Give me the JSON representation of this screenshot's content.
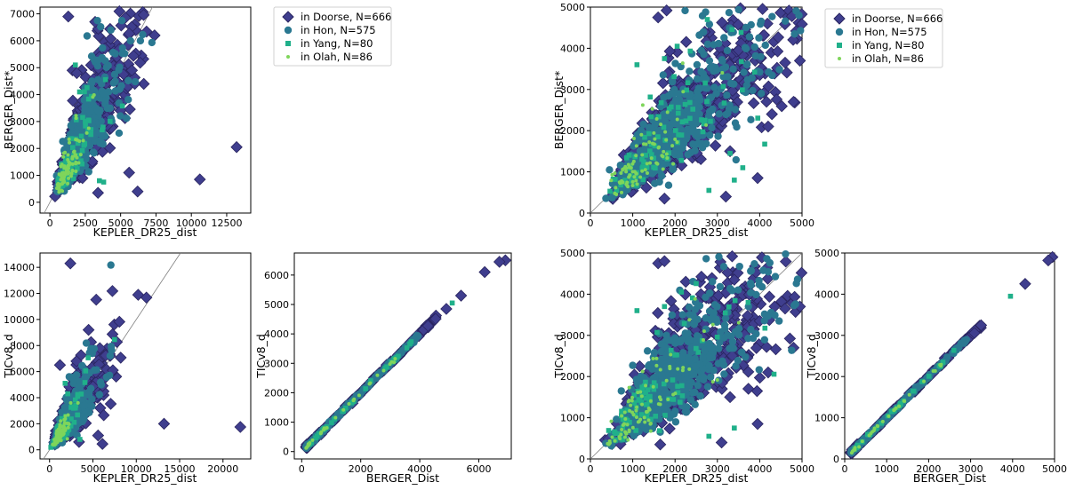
{
  "figure": {
    "colors": {
      "doorse": "#3f3e8e",
      "doorse_edge": "#2a2560",
      "hon": "#2a7891",
      "hon_edge": "#1f5e72",
      "yang": "#20b08a",
      "olah": "#7fd55b",
      "identity": "#808080"
    }
  },
  "legends": [
    {
      "items": [
        {
          "label": "in Doorse, N=666",
          "marker": "diamond-icon",
          "color": "#3f3e8e"
        },
        {
          "label": "in Hon, N=575",
          "marker": "circle-icon",
          "color": "#2a7891"
        },
        {
          "label": "in Yang, N=80",
          "marker": "square-icon",
          "color": "#20b08a"
        },
        {
          "label": "in Olah, N=86",
          "marker": "dot-icon",
          "color": "#7fd55b"
        }
      ]
    },
    {
      "items": [
        {
          "label": "in Doorse, N=666",
          "marker": "diamond-icon",
          "color": "#3f3e8e"
        },
        {
          "label": "in Hon, N=575",
          "marker": "circle-icon",
          "color": "#2a7891"
        },
        {
          "label": "in Yang, N=80",
          "marker": "square-icon",
          "color": "#20b08a"
        },
        {
          "label": "in Olah, N=86",
          "marker": "dot-icon",
          "color": "#7fd55b"
        }
      ]
    }
  ],
  "chart_data": [
    {
      "type": "scatter",
      "xlabel": "KEPLER_DR25_dist",
      "ylabel": "BERGER_Dist*",
      "xlim": [
        -700,
        14200
      ],
      "ylim": [
        -400,
        7250
      ],
      "xticks": [
        0,
        2500,
        5000,
        7500,
        10000,
        12500
      ],
      "yticks": [
        0,
        1000,
        2000,
        3000,
        4000,
        5000,
        6000,
        7000
      ],
      "identity_line": true,
      "clamp_max": 14000,
      "series": [
        {
          "name": "in Doorse, N=666",
          "marker": "diamond",
          "color": "#3f3e8e",
          "outliers": [
            [
              1300,
              6900
            ],
            [
              3200,
              6700
            ],
            [
              7400,
              6200
            ],
            [
              1600,
              4900
            ],
            [
              1900,
              4800
            ],
            [
              5800,
              4900
            ],
            [
              3500,
              5400
            ],
            [
              5500,
              4300
            ],
            [
              6000,
              4400
            ],
            [
              13200,
              2050
            ],
            [
              10600,
              850
            ],
            [
              5600,
              1100
            ],
            [
              6200,
              400
            ],
            [
              3400,
              350
            ],
            [
              2300,
              900
            ]
          ]
        },
        {
          "name": "in Hon, N=575",
          "marker": "circle",
          "color": "#2a7891",
          "outliers": []
        },
        {
          "name": "in Yang, N=80",
          "marker": "square",
          "color": "#20b08a",
          "outliers": [
            [
              1800,
              5100
            ],
            [
              2100,
              4100
            ],
            [
              2500,
              3000
            ],
            [
              3500,
              800
            ],
            [
              3800,
              750
            ],
            [
              2900,
              2700
            ]
          ]
        },
        {
          "name": "in Olah, N=86",
          "marker": "dot",
          "color": "#7fd55b",
          "outliers": []
        }
      ]
    },
    {
      "type": "scatter",
      "xlabel": "KEPLER_DR25_dist",
      "ylabel": "BERGER_Dist*",
      "xlim": [
        0,
        5000
      ],
      "ylim": [
        0,
        5000
      ],
      "xticks": [
        0,
        1000,
        2000,
        3000,
        4000,
        5000
      ],
      "yticks": [
        0,
        1000,
        2000,
        3000,
        4000,
        5000
      ],
      "identity_line": true,
      "clamp_max": 5000,
      "series": [
        {
          "name": "in Doorse, N=666",
          "marker": "diamond",
          "color": "#3f3e8e",
          "outliers": [
            [
              1600,
              4750
            ],
            [
              1800,
              4920
            ],
            [
              3500,
              3950
            ],
            [
              4000,
              3350
            ],
            [
              4600,
              3650
            ],
            [
              4950,
              3700
            ],
            [
              3300,
              1500
            ],
            [
              3950,
              850
            ],
            [
              1750,
              350
            ],
            [
              3200,
              400
            ],
            [
              4200,
              2100
            ],
            [
              4800,
              2700
            ]
          ]
        },
        {
          "name": "in Hon, N=575",
          "marker": "circle",
          "color": "#2a7891",
          "outliers": []
        },
        {
          "name": "in Yang, N=80",
          "marker": "square",
          "color": "#20b08a",
          "outliers": [
            [
              2050,
              4050
            ],
            [
              1750,
              3750
            ],
            [
              1100,
              3600
            ],
            [
              3400,
              800
            ],
            [
              2800,
              550
            ],
            [
              3300,
              1450
            ],
            [
              3600,
              1100
            ]
          ]
        },
        {
          "name": "in Olah, N=86",
          "marker": "dot",
          "color": "#7fd55b",
          "outliers": []
        }
      ]
    },
    {
      "type": "scatter",
      "xlabel": "KEPLER_DR25_dist",
      "ylabel": "TICv8_d",
      "xlim": [
        -1100,
        23200
      ],
      "ylim": [
        -700,
        15100
      ],
      "xticks": [
        0,
        5000,
        10000,
        15000,
        20000
      ],
      "yticks": [
        0,
        2000,
        4000,
        6000,
        8000,
        10000,
        12000,
        14000
      ],
      "identity_line": true,
      "clamp_max": 23000,
      "series": [
        {
          "name": "in Doorse, N=666",
          "marker": "diamond",
          "color": "#3f3e8e",
          "outliers": [
            [
              2400,
              14300
            ],
            [
              4500,
              9200
            ],
            [
              5800,
              7800
            ],
            [
              7300,
              6100
            ],
            [
              1200,
              6500
            ],
            [
              3100,
              6800
            ],
            [
              3500,
              5400
            ],
            [
              13200,
              2000
            ],
            [
              22000,
              1750
            ],
            [
              5600,
              1100
            ],
            [
              6100,
              450
            ],
            [
              3400,
              600
            ]
          ]
        },
        {
          "name": "in Hon, N=575",
          "marker": "circle",
          "color": "#2a7891",
          "outliers": []
        },
        {
          "name": "in Yang, N=80",
          "marker": "square",
          "color": "#20b08a",
          "outliers": [
            [
              1800,
              5100
            ],
            [
              2100,
              4300
            ],
            [
              3500,
              800
            ],
            [
              2600,
              3300
            ]
          ]
        },
        {
          "name": "in Olah, N=86",
          "marker": "dot",
          "color": "#7fd55b",
          "outliers": []
        }
      ]
    },
    {
      "type": "scatter",
      "xlabel": "BERGER_Dist",
      "ylabel": "TICv8_d",
      "xlim": [
        -250,
        7100
      ],
      "ylim": [
        -250,
        6750
      ],
      "xticks": [
        0,
        2000,
        4000,
        6000
      ],
      "yticks": [
        0,
        1000,
        2000,
        3000,
        4000,
        5000,
        6000
      ],
      "identity_line": false,
      "diagonal": true,
      "series": [
        {
          "name": "in Doorse, N=666",
          "marker": "diamond",
          "color": "#3f3e8e",
          "outliers": [
            [
              6900,
              6500
            ],
            [
              6700,
              6450
            ],
            [
              6200,
              6100
            ],
            [
              5400,
              5300
            ],
            [
              4900,
              4850
            ]
          ]
        },
        {
          "name": "in Hon, N=575",
          "marker": "circle",
          "color": "#2a7891",
          "outliers": []
        },
        {
          "name": "in Yang, N=80",
          "marker": "square",
          "color": "#20b08a",
          "outliers": [
            [
              5100,
              5050
            ]
          ]
        },
        {
          "name": "in Olah, N=86",
          "marker": "dot",
          "color": "#7fd55b",
          "outliers": []
        }
      ]
    },
    {
      "type": "scatter",
      "xlabel": "KEPLER_DR25_dist",
      "ylabel": "TICv8_d",
      "xlim": [
        0,
        5000
      ],
      "ylim": [
        0,
        5000
      ],
      "xticks": [
        0,
        1000,
        2000,
        3000,
        4000,
        5000
      ],
      "yticks": [
        0,
        1000,
        2000,
        3000,
        4000,
        5000
      ],
      "identity_line": true,
      "clamp_max": 5000,
      "series": [
        {
          "name": "in Doorse, N=666",
          "marker": "diamond",
          "color": "#3f3e8e",
          "outliers": [
            [
              1600,
              4750
            ],
            [
              1750,
              4800
            ],
            [
              3400,
              4350
            ],
            [
              4000,
              3350
            ],
            [
              4600,
              3650
            ],
            [
              4950,
              3700
            ],
            [
              3300,
              1500
            ],
            [
              3950,
              850
            ],
            [
              1650,
              350
            ],
            [
              3100,
              400
            ],
            [
              4200,
              2100
            ],
            [
              4800,
              2700
            ]
          ]
        },
        {
          "name": "in Hon, N=575",
          "marker": "circle",
          "color": "#2a7891",
          "outliers": []
        },
        {
          "name": "in Yang, N=80",
          "marker": "square",
          "color": "#20b08a",
          "outliers": [
            [
              2150,
              4050
            ],
            [
              1750,
              3700
            ],
            [
              1100,
              3600
            ],
            [
              3400,
              750
            ],
            [
              2800,
              550
            ]
          ]
        },
        {
          "name": "in Olah, N=86",
          "marker": "dot",
          "color": "#7fd55b",
          "outliers": []
        }
      ]
    },
    {
      "type": "scatter",
      "xlabel": "BERGER_Dist",
      "ylabel": "TICv8_d",
      "xlim": [
        0,
        5000
      ],
      "ylim": [
        0,
        5000
      ],
      "xticks": [
        0,
        1000,
        2000,
        3000,
        4000,
        5000
      ],
      "yticks": [
        0,
        1000,
        2000,
        3000,
        4000,
        5000
      ],
      "identity_line": false,
      "diagonal": true,
      "series": [
        {
          "name": "in Doorse, N=666",
          "marker": "diamond",
          "color": "#3f3e8e",
          "outliers": [
            [
              4950,
              4900
            ],
            [
              4850,
              4820
            ],
            [
              4300,
              4250
            ]
          ]
        },
        {
          "name": "in Hon, N=575",
          "marker": "circle",
          "color": "#2a7891",
          "outliers": []
        },
        {
          "name": "in Yang, N=80",
          "marker": "square",
          "color": "#20b08a",
          "outliers": [
            [
              3950,
              3950
            ]
          ]
        },
        {
          "name": "in Olah, N=86",
          "marker": "dot",
          "color": "#7fd55b",
          "outliers": []
        }
      ]
    }
  ]
}
